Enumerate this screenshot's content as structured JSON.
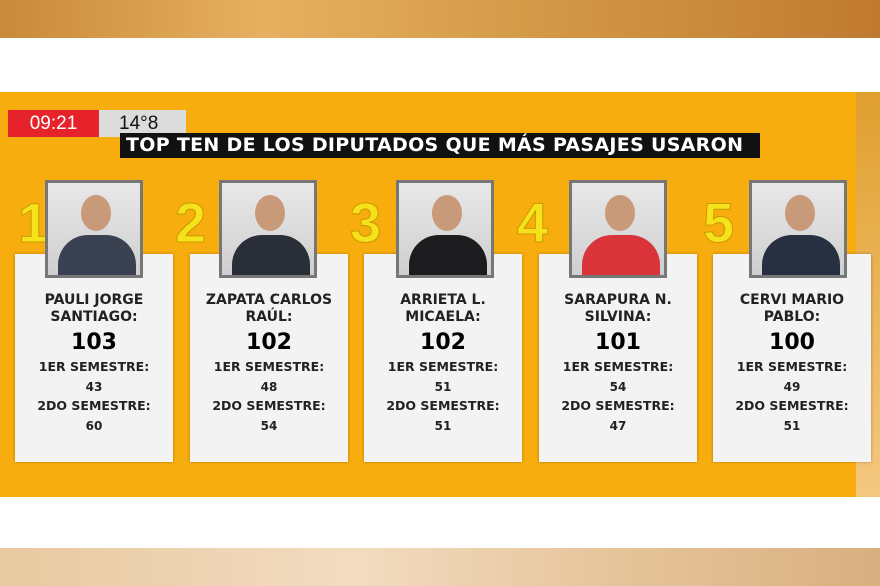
{
  "header": {
    "clock": "09:21",
    "temperature": "14°8",
    "title": "TOP TEN DE LOS DIPUTADOS QUE MÁS PASAJES USARON"
  },
  "colors": {
    "panel": "#f8ad0e",
    "clock_bg": "#e6232b",
    "rank": "#f6e21a"
  },
  "ranking": [
    {
      "rank": "1",
      "name": "PAULI JORGE SANTIAGO:",
      "total": "103",
      "sem1_label": "1ER SEMESTRE:",
      "sem1": "43",
      "sem2_label": "2DO SEMESTRE:",
      "sem2": "60"
    },
    {
      "rank": "2",
      "name": "ZAPATA CARLOS RAÚL:",
      "total": "102",
      "sem1_label": "1ER SEMESTRE:",
      "sem1": "48",
      "sem2_label": "2DO SEMESTRE:",
      "sem2": "54"
    },
    {
      "rank": "3",
      "name": "ARRIETA L. MICAELA:",
      "total": "102",
      "sem1_label": "1ER SEMESTRE:",
      "sem1": "51",
      "sem2_label": "2DO SEMESTRE:",
      "sem2": "51"
    },
    {
      "rank": "4",
      "name": "SARAPURA N. SILVINA:",
      "total": "101",
      "sem1_label": "1ER SEMESTRE:",
      "sem1": "54",
      "sem2_label": "2DO SEMESTRE:",
      "sem2": "47"
    },
    {
      "rank": "5",
      "name": "CERVI MARIO PABLO:",
      "total": "100",
      "sem1_label": "1ER SEMESTRE:",
      "sem1": "49",
      "sem2_label": "2DO SEMESTRE:",
      "sem2": "51"
    }
  ]
}
